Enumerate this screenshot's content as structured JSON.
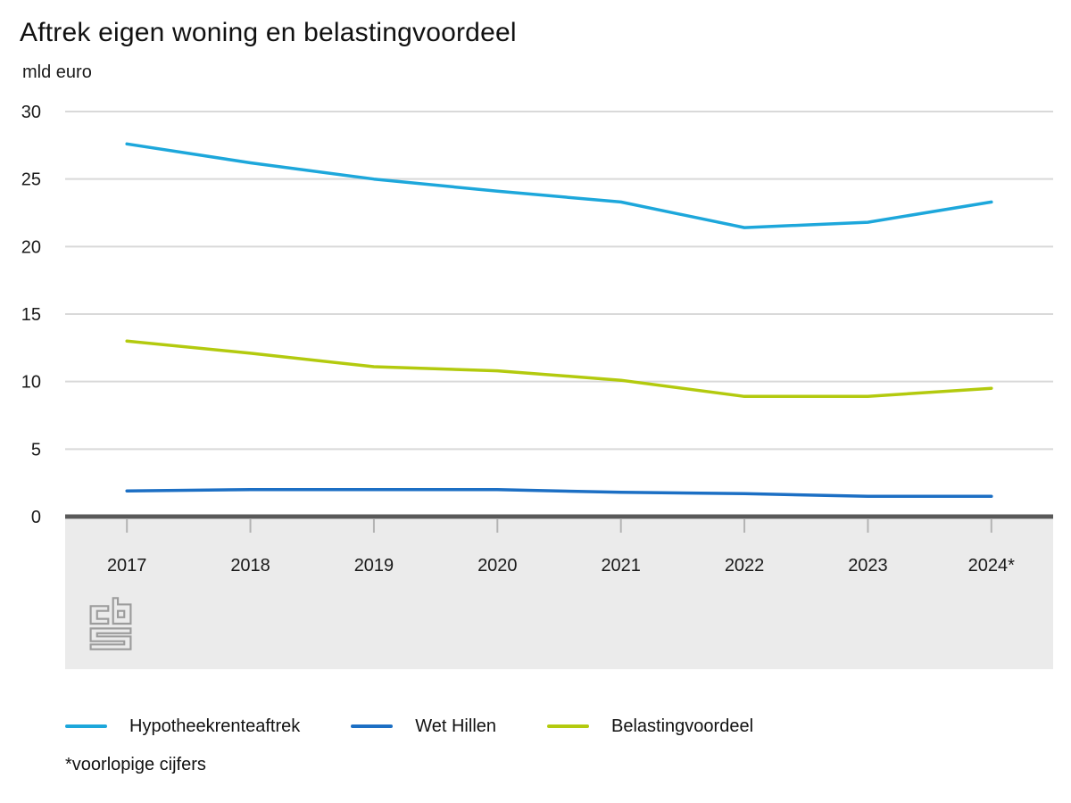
{
  "chart_data": {
    "type": "line",
    "title": "Aftrek eigen woning en belastingvoordeel",
    "unit": "mld euro",
    "categories": [
      "2017",
      "2018",
      "2019",
      "2020",
      "2021",
      "2022",
      "2023",
      "2024*"
    ],
    "series": [
      {
        "name": "Hypotheekrenteaftrek",
        "color": "#1da7db",
        "values": [
          27.6,
          26.2,
          25.0,
          24.1,
          23.3,
          21.4,
          21.8,
          23.3
        ]
      },
      {
        "name": "Wet Hillen",
        "color": "#1c6fc4",
        "values": [
          1.9,
          2.0,
          2.0,
          2.0,
          1.8,
          1.7,
          1.5,
          1.5
        ]
      },
      {
        "name": "Belastingvoordeel",
        "color": "#b3ca0e",
        "values": [
          13.0,
          12.1,
          11.1,
          10.8,
          10.1,
          8.9,
          8.9,
          9.5
        ]
      }
    ],
    "ylim": [
      0,
      30
    ],
    "yticks": [
      0,
      5,
      10,
      15,
      20,
      25,
      30
    ],
    "grid": true,
    "legend_position": "bottom",
    "footnote": "*voorlopige cijfers"
  },
  "colors": {
    "gridline": "#d9d9d9",
    "zero_axis": "#595959",
    "tick": "#b3b3b3",
    "plot_band": "#ebebeb",
    "text": "#1a1a1a",
    "logo": "#9c9c9c"
  }
}
